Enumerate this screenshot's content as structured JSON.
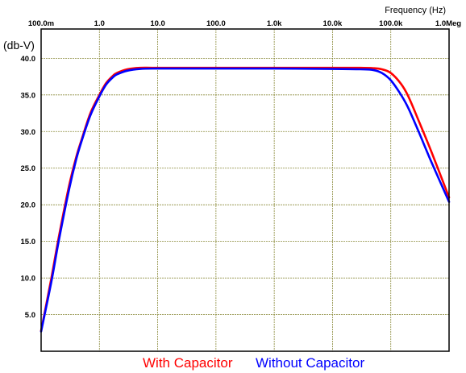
{
  "chart_data": {
    "type": "line",
    "title": "",
    "xlabel": "Frequency  (Hz)",
    "ylabel": "(db-V)",
    "x_scale": "log",
    "xlim": [
      0.1,
      1000000
    ],
    "ylim": [
      0,
      44
    ],
    "x_ticks": [
      0.1,
      1,
      10,
      100,
      1000,
      10000,
      100000,
      1000000
    ],
    "x_tick_labels": [
      "100.0m",
      "1.0",
      "10.0",
      "100.0",
      "1.0k",
      "10.0k",
      "100.0k",
      "1.0Meg"
    ],
    "y_ticks": [
      5,
      10,
      15,
      20,
      25,
      30,
      35,
      40
    ],
    "y_tick_labels": [
      "5.0",
      "10.0",
      "15.0",
      "20.0",
      "25.0",
      "30.0",
      "35.0",
      "40.0"
    ],
    "grid": true,
    "legend_position": "bottom-center",
    "series": [
      {
        "name": "With Capacitor",
        "color": "#ff0000",
        "x": [
          0.1,
          0.15,
          0.2,
          0.3,
          0.4,
          0.5,
          0.7,
          1,
          1.3,
          1.7,
          2,
          3,
          5,
          10,
          100,
          1000,
          10000,
          30000,
          50000,
          70000,
          100000,
          150000,
          200000,
          300000,
          500000,
          1000000
        ],
        "y": [
          2.8,
          10.0,
          15.5,
          22.5,
          26.5,
          29.0,
          32.5,
          35.0,
          36.6,
          37.6,
          38.0,
          38.5,
          38.7,
          38.7,
          38.7,
          38.7,
          38.7,
          38.7,
          38.65,
          38.5,
          38.0,
          36.5,
          34.8,
          31.5,
          27.2,
          21.0
        ]
      },
      {
        "name": "Without Capacitor",
        "color": "#0000ff",
        "x": [
          0.1,
          0.15,
          0.2,
          0.3,
          0.4,
          0.5,
          0.7,
          1,
          1.3,
          1.7,
          2,
          3,
          5,
          10,
          100,
          1000,
          10000,
          30000,
          50000,
          70000,
          100000,
          150000,
          200000,
          300000,
          500000,
          1000000
        ],
        "y": [
          2.7,
          9.5,
          15.0,
          22.0,
          26.2,
          28.8,
          32.2,
          34.8,
          36.4,
          37.4,
          37.8,
          38.3,
          38.55,
          38.6,
          38.6,
          38.6,
          38.55,
          38.5,
          38.4,
          38.0,
          37.0,
          35.0,
          33.2,
          30.0,
          25.8,
          20.4
        ]
      }
    ]
  }
}
